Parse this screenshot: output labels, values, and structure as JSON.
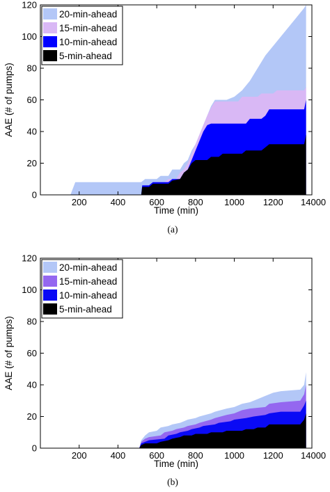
{
  "chart_data": [
    {
      "type": "area",
      "caption": "(a)",
      "xlabel": "Time (min)",
      "ylabel": "AAE (# of pumps)",
      "xlim": [
        0,
        1400
      ],
      "ylim": [
        0,
        120
      ],
      "xticks": [
        200,
        400,
        600,
        800,
        1000,
        1200
      ],
      "xtick_labels": [
        "200",
        "400",
        "600",
        "800",
        "1000",
        "1200"
      ],
      "xtick_edge_label": "14000",
      "yticks": [
        0,
        20,
        40,
        60,
        80,
        100,
        120
      ],
      "grid": false,
      "legend": "top-left",
      "stacking": "overlaid (largest drawn behind)",
      "series": [
        {
          "name": "20-min-ahead",
          "color": "#b3c7f7",
          "points": [
            [
              155,
              0
            ],
            [
              180,
              8
            ],
            [
              520,
              8
            ],
            [
              540,
              10
            ],
            [
              600,
              10
            ],
            [
              620,
              12
            ],
            [
              660,
              12
            ],
            [
              680,
              16
            ],
            [
              720,
              16
            ],
            [
              740,
              20
            ],
            [
              760,
              22
            ],
            [
              780,
              28
            ],
            [
              800,
              32
            ],
            [
              820,
              38
            ],
            [
              840,
              44
            ],
            [
              860,
              50
            ],
            [
              880,
              56
            ],
            [
              900,
              60
            ],
            [
              960,
              60
            ],
            [
              1000,
              62
            ],
            [
              1040,
              66
            ],
            [
              1080,
              72
            ],
            [
              1120,
              80
            ],
            [
              1160,
              88
            ],
            [
              1200,
              94
            ],
            [
              1240,
              100
            ],
            [
              1280,
              106
            ],
            [
              1320,
              112
            ],
            [
              1360,
              118
            ],
            [
              1370,
              120
            ]
          ]
        },
        {
          "name": "15-min-ahead",
          "color": "#d9b8f5",
          "points": [
            [
              520,
              0
            ],
            [
              525,
              6
            ],
            [
              560,
              6
            ],
            [
              580,
              8
            ],
            [
              640,
              8
            ],
            [
              660,
              10
            ],
            [
              700,
              10
            ],
            [
              720,
              14
            ],
            [
              740,
              16
            ],
            [
              760,
              20
            ],
            [
              780,
              26
            ],
            [
              800,
              32
            ],
            [
              820,
              38
            ],
            [
              840,
              44
            ],
            [
              860,
              50
            ],
            [
              880,
              55
            ],
            [
              900,
              59
            ],
            [
              1020,
              59
            ],
            [
              1040,
              62
            ],
            [
              1120,
              62
            ],
            [
              1140,
              64
            ],
            [
              1200,
              64
            ],
            [
              1220,
              66
            ],
            [
              1360,
              66
            ],
            [
              1370,
              68
            ]
          ]
        },
        {
          "name": "10-min-ahead",
          "color": "#0000ff",
          "points": [
            [
              520,
              0
            ],
            [
              525,
              6
            ],
            [
              560,
              6
            ],
            [
              580,
              8
            ],
            [
              660,
              8
            ],
            [
              680,
              10
            ],
            [
              720,
              10
            ],
            [
              740,
              14
            ],
            [
              760,
              16
            ],
            [
              780,
              22
            ],
            [
              800,
              28
            ],
            [
              820,
              34
            ],
            [
              840,
              40
            ],
            [
              860,
              44
            ],
            [
              880,
              45
            ],
            [
              1060,
              45
            ],
            [
              1080,
              48
            ],
            [
              1140,
              48
            ],
            [
              1160,
              50
            ],
            [
              1180,
              54
            ],
            [
              1360,
              54
            ],
            [
              1370,
              60
            ]
          ]
        },
        {
          "name": "5-min-ahead",
          "color": "#000000",
          "points": [
            [
              520,
              0
            ],
            [
              525,
              5
            ],
            [
              560,
              5
            ],
            [
              580,
              7
            ],
            [
              660,
              7
            ],
            [
              680,
              9
            ],
            [
              720,
              10
            ],
            [
              740,
              14
            ],
            [
              760,
              16
            ],
            [
              780,
              20
            ],
            [
              800,
              22
            ],
            [
              860,
              22
            ],
            [
              880,
              24
            ],
            [
              920,
              24
            ],
            [
              940,
              26
            ],
            [
              1040,
              26
            ],
            [
              1060,
              28
            ],
            [
              1140,
              28
            ],
            [
              1160,
              30
            ],
            [
              1180,
              32
            ],
            [
              1360,
              32
            ],
            [
              1370,
              38
            ]
          ]
        }
      ]
    },
    {
      "type": "area",
      "caption": "(b)",
      "xlabel": "Time (min)",
      "ylabel": "AAE (# of pumps)",
      "xlim": [
        0,
        1400
      ],
      "ylim": [
        0,
        120
      ],
      "xticks": [
        200,
        400,
        600,
        800,
        1000,
        1200
      ],
      "xtick_labels": [
        "200",
        "400",
        "600",
        "800",
        "1000",
        "1200"
      ],
      "xtick_edge_label": "14000",
      "yticks": [
        0,
        20,
        40,
        60,
        80,
        100,
        120
      ],
      "grid": false,
      "legend": "top-left",
      "stacking": "overlaid (largest drawn behind)",
      "series": [
        {
          "name": "20-min-ahead",
          "color": "#b3c7f7",
          "points": [
            [
              510,
              0
            ],
            [
              520,
              5
            ],
            [
              540,
              8
            ],
            [
              560,
              10
            ],
            [
              600,
              11
            ],
            [
              620,
              13
            ],
            [
              660,
              14
            ],
            [
              680,
              15
            ],
            [
              720,
              16
            ],
            [
              740,
              17
            ],
            [
              760,
              18
            ],
            [
              800,
              19
            ],
            [
              820,
              20
            ],
            [
              880,
              22
            ],
            [
              900,
              23
            ],
            [
              960,
              25
            ],
            [
              1000,
              26
            ],
            [
              1040,
              28
            ],
            [
              1080,
              29
            ],
            [
              1120,
              31
            ],
            [
              1160,
              33
            ],
            [
              1200,
              35
            ],
            [
              1240,
              36
            ],
            [
              1340,
              37
            ],
            [
              1360,
              40
            ],
            [
              1370,
              48
            ]
          ]
        },
        {
          "name": "15-min-ahead",
          "color": "#9467f0",
          "points": [
            [
              510,
              0
            ],
            [
              520,
              4
            ],
            [
              540,
              6
            ],
            [
              560,
              7
            ],
            [
              620,
              8
            ],
            [
              640,
              10
            ],
            [
              680,
              11
            ],
            [
              700,
              12
            ],
            [
              740,
              13
            ],
            [
              760,
              14
            ],
            [
              800,
              15
            ],
            [
              820,
              16
            ],
            [
              880,
              18
            ],
            [
              900,
              19
            ],
            [
              960,
              21
            ],
            [
              1000,
              22
            ],
            [
              1040,
              24
            ],
            [
              1080,
              25
            ],
            [
              1160,
              26
            ],
            [
              1180,
              28
            ],
            [
              1240,
              29
            ],
            [
              1340,
              30
            ],
            [
              1360,
              34
            ],
            [
              1370,
              40
            ]
          ]
        },
        {
          "name": "10-min-ahead",
          "color": "#0a0af5",
          "points": [
            [
              510,
              0
            ],
            [
              520,
              3
            ],
            [
              540,
              4
            ],
            [
              560,
              5
            ],
            [
              640,
              6
            ],
            [
              660,
              8
            ],
            [
              700,
              9
            ],
            [
              720,
              10
            ],
            [
              760,
              11
            ],
            [
              780,
              12
            ],
            [
              820,
              13
            ],
            [
              840,
              14
            ],
            [
              900,
              15
            ],
            [
              920,
              16
            ],
            [
              980,
              17
            ],
            [
              1000,
              18
            ],
            [
              1060,
              19
            ],
            [
              1100,
              20
            ],
            [
              1160,
              21
            ],
            [
              1180,
              22
            ],
            [
              1240,
              23
            ],
            [
              1340,
              23
            ],
            [
              1360,
              27
            ],
            [
              1370,
              30
            ]
          ]
        },
        {
          "name": "5-min-ahead",
          "color": "#000000",
          "points": [
            [
              510,
              0
            ],
            [
              520,
              2
            ],
            [
              540,
              3
            ],
            [
              600,
              3
            ],
            [
              620,
              4
            ],
            [
              660,
              5
            ],
            [
              680,
              6
            ],
            [
              720,
              7
            ],
            [
              740,
              8
            ],
            [
              780,
              8
            ],
            [
              800,
              9
            ],
            [
              860,
              9
            ],
            [
              880,
              10
            ],
            [
              940,
              10
            ],
            [
              960,
              11
            ],
            [
              1040,
              11
            ],
            [
              1060,
              12
            ],
            [
              1100,
              12
            ],
            [
              1120,
              13
            ],
            [
              1160,
              13
            ],
            [
              1180,
              15
            ],
            [
              1340,
              15
            ],
            [
              1360,
              18
            ],
            [
              1370,
              22
            ]
          ]
        }
      ]
    }
  ]
}
